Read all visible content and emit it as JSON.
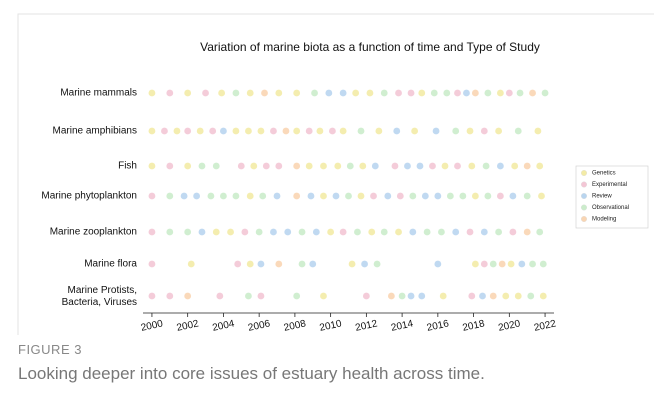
{
  "chart_data": {
    "type": "scatter",
    "title": "Variation of marine biota as a function of time and Type of Study",
    "categories": [
      "Marine mammals",
      "Marine amphibians",
      "Fish",
      "Marine phytoplankton",
      "Marine zooplankton",
      "Marine flora",
      "Marine Protists, Bacteria, Viruses"
    ],
    "xlim": [
      1999.5,
      2022.5
    ],
    "xticks": [
      2000,
      2002,
      2004,
      2006,
      2008,
      2010,
      2012,
      2014,
      2016,
      2018,
      2020,
      2022
    ],
    "legend": "right",
    "series": [
      {
        "name": "Genetics",
        "color": "#f3eba6",
        "x": [
          [
            2000,
            2002,
            2003.9,
            2005.5,
            2007.1,
            2008.1,
            2011.4,
            2012.2,
            2015.1,
            2019.5
          ],
          [
            2000,
            2001.4,
            2002.7,
            2004.7,
            2005.4,
            2006.1,
            2008.1,
            2009.4,
            2010.7,
            2012.7,
            2014.7,
            2017.8,
            2019.4,
            2021.6
          ],
          [
            2000,
            2002,
            2005.7,
            2008.8,
            2009.6,
            2010.4,
            2011.8,
            2016.4,
            2017.9,
            2020.3,
            2021.7
          ],
          [
            2005.5,
            2009.6,
            2011.7,
            2018.1,
            2021.8
          ],
          [
            2003.6,
            2004.4,
            2010,
            2012.3,
            2013.8
          ],
          [
            2002.2,
            2005.5,
            2011.2,
            2018.1,
            2020.1
          ],
          [
            2009.6,
            2016.3,
            2019.8,
            2020.5,
            2021.9
          ]
        ]
      },
      {
        "name": "Experimental",
        "color": "#f3c6d5",
        "x": [
          [
            2001,
            2003,
            2013.8,
            2014.5,
            2017.1,
            2020
          ],
          [
            2000.7,
            2002,
            2003.4,
            2006.8,
            2008.8,
            2010.1,
            2018.6
          ],
          [
            2001,
            2005,
            2006.4,
            2007.1,
            2013.6,
            2015.7,
            2017.1
          ],
          [
            2000,
            2012.4,
            2013.9,
            2019.5
          ],
          [
            2000,
            2005.2,
            2010.7,
            2017.8,
            2020.2
          ],
          [
            2000,
            2004.8,
            2018.6
          ],
          [
            2000,
            2001,
            2003.8,
            2006.1,
            2012,
            2017.9
          ]
        ]
      },
      {
        "name": "Review",
        "color": "#b9d5ef",
        "x": [
          [
            2009.9,
            2010.7,
            2017.6
          ],
          [
            2004,
            2013.7,
            2015.9
          ],
          [
            2012.5,
            2014.3,
            2015,
            2019.5
          ],
          [
            2001.8,
            2002.5,
            2007,
            2008.9,
            2010.3,
            2013.2,
            2015.3,
            2016,
            2020.2
          ],
          [
            2002.8,
            2006.8,
            2007.6,
            2009.2,
            2014.6,
            2017,
            2018.6
          ],
          [
            2006.1,
            2009,
            2011.9,
            2016,
            2020.7
          ],
          [
            2014.5,
            2015.1,
            2018.5
          ]
        ]
      },
      {
        "name": "Observational",
        "color": "#cbeccb",
        "x": [
          [
            2004.7,
            2009.1,
            2013,
            2015.8,
            2016.5,
            2018.8,
            2020.6,
            2022
          ],
          [
            2011.7,
            2017,
            2020.5
          ],
          [
            2002.8,
            2003.6,
            2011.1,
            2018.7
          ],
          [
            2001,
            2003.3,
            2004,
            2004.7,
            2006.2,
            2011,
            2014.6,
            2016.7,
            2017.4,
            2018.8,
            2021
          ],
          [
            2001,
            2002,
            2006,
            2008.4,
            2011.5,
            2013,
            2015.4,
            2016.2,
            2019.4,
            2021.7
          ],
          [
            2008.4,
            2012.6,
            2019.1,
            2021.3,
            2021.9
          ],
          [
            2005.4,
            2008.1,
            2014,
            2021.2
          ]
        ]
      },
      {
        "name": "Modeling",
        "color": "#f9d5b3",
        "x": [
          [
            2006.3,
            2018.1,
            2021.3
          ],
          [
            2007.5
          ],
          [
            2008.1,
            2021
          ],
          [
            2008.1
          ],
          [
            2021
          ],
          [
            2007.1,
            2019.6
          ],
          [
            2002,
            2013.4,
            2019.1
          ]
        ]
      }
    ]
  },
  "caption": {
    "label": "FIGURE 3",
    "text": "Looking deeper into core issues of estuary health across time."
  }
}
